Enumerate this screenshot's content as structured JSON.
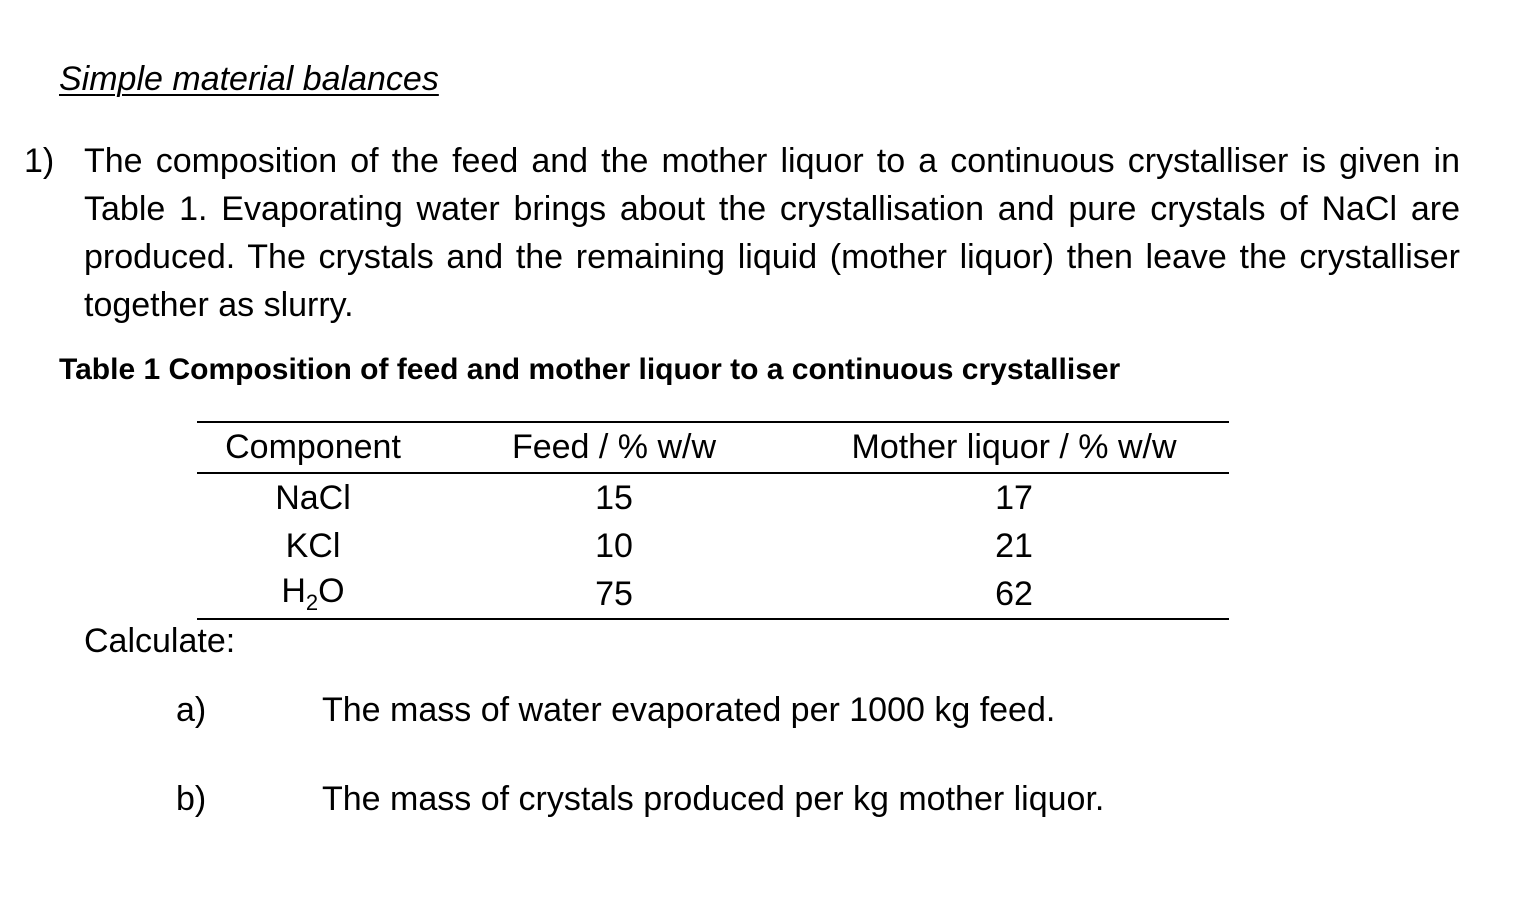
{
  "heading": "Simple material balances",
  "question": {
    "number": "1)",
    "text": "The composition of the feed and the mother liquor to a continuous crystalliser is given in Table 1. Evaporating water brings about the crystallisation and pure crystals of NaCl are produced. The crystals and the remaining liquid (mother liquor) then leave the crystalliser together as slurry."
  },
  "table": {
    "caption": "Table 1 Composition of feed and mother liquor to a continuous crystalliser",
    "headers": [
      "Component",
      "Feed / % w/w",
      "Mother liquor / % w/w"
    ],
    "rows": [
      {
        "component": "NaCl",
        "feed": "15",
        "mother": "17"
      },
      {
        "component": "KCl",
        "feed": "10",
        "mother": "21"
      },
      {
        "component_base": "H",
        "component_sub": "2",
        "component_tail": "O",
        "feed": "75",
        "mother": "62"
      }
    ]
  },
  "calculate": {
    "label": "Calculate:",
    "parts": [
      {
        "label": "a)",
        "text": "The mass of water evaporated per 1000 kg feed."
      },
      {
        "label": "b)",
        "text": "The mass of crystals produced per kg mother liquor."
      }
    ]
  }
}
